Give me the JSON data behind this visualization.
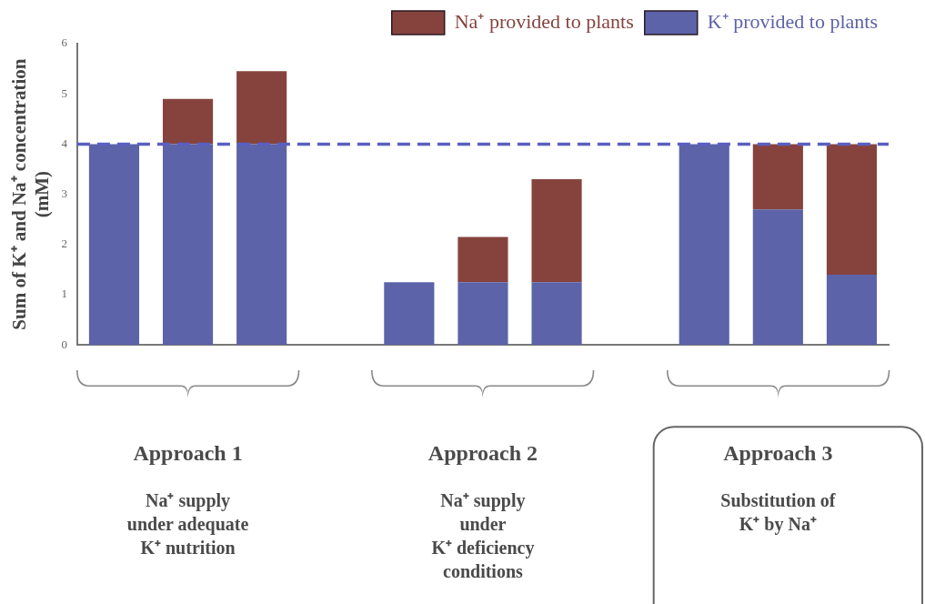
{
  "chart_data": {
    "type": "bar",
    "stacked": true,
    "ylabel": "Sum of K⁺ and Na⁺ concentration\n(mM)",
    "categories": [
      null,
      null,
      null,
      null,
      null,
      null,
      null,
      null,
      null,
      null,
      null
    ],
    "series": [
      {
        "name": "K⁺ provided to plants",
        "color": "#5d63a8",
        "values": [
          4,
          4,
          4,
          null,
          1.25,
          1.25,
          1.25,
          null,
          4,
          2.7,
          1.4
        ]
      },
      {
        "name": "Na⁺ provided to plants",
        "color": "#86433e",
        "values": [
          null,
          0.9,
          1.45,
          null,
          null,
          0.9,
          2.05,
          null,
          null,
          1.3,
          2.6
        ]
      }
    ],
    "ylim": [
      0,
      6
    ],
    "yticks": [
      0,
      1,
      2,
      3,
      4,
      5,
      6
    ],
    "grid": false,
    "legend": "top right",
    "tick_labels": "y",
    "ref_lines": [
      {
        "axis": "y",
        "value": 4,
        "color": "#5a5fc0",
        "line_style": "dashed"
      }
    ],
    "annotations": [
      "Approach 1",
      "Na⁺ supply\nunder adequate\nK⁺ nutrition",
      "Approach 2",
      "Na⁺ supply\nunder\nK⁺ deficiency\nconditions",
      "Approach 3",
      "Substitution of\nK⁺ by Na⁺"
    ]
  }
}
